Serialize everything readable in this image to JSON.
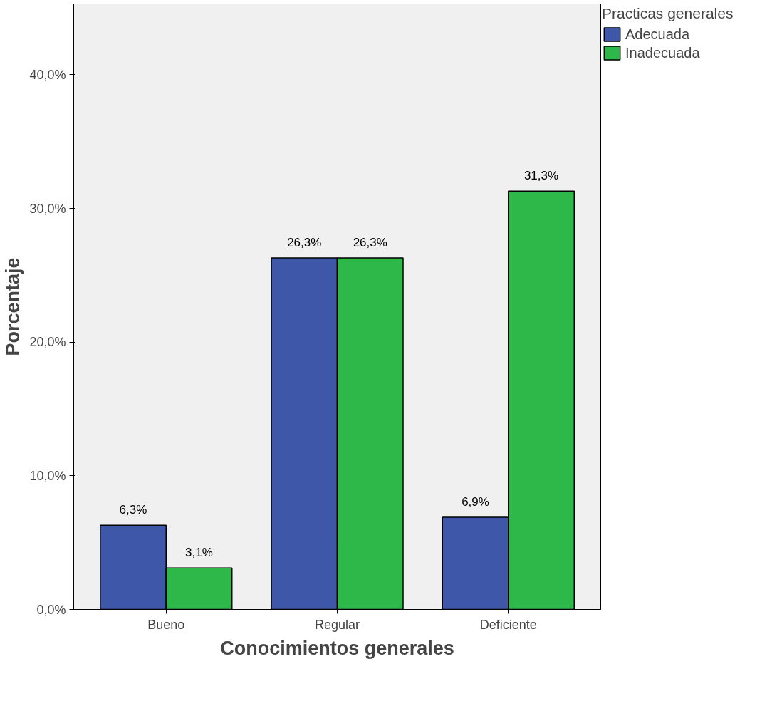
{
  "chart_data": {
    "type": "bar",
    "xlabel": "Conocimientos generales",
    "ylabel": "Porcentaje",
    "legend_title": "Practicas generales",
    "categories": [
      "Bueno",
      "Regular",
      "Deficiente"
    ],
    "series": [
      {
        "name": "Adecuada",
        "color": "#3f57a9",
        "values": [
          6.3,
          26.3,
          6.9
        ],
        "value_labels": [
          "6,3%",
          "26,3%",
          "6,9%"
        ]
      },
      {
        "name": "Inadecuada",
        "color": "#2fb84a",
        "values": [
          3.1,
          26.3,
          31.3
        ],
        "value_labels": [
          "3,1%",
          "26,3%",
          "31,3%"
        ]
      }
    ],
    "ylim": [
      0,
      45.3
    ],
    "yticks": [
      {
        "value": 0,
        "label": "0,0%"
      },
      {
        "value": 10,
        "label": "10,0%"
      },
      {
        "value": 20,
        "label": "20,0%"
      },
      {
        "value": 30,
        "label": "30,0%"
      },
      {
        "value": 40,
        "label": "40,0%"
      }
    ],
    "grid": false,
    "legend": "top right"
  }
}
